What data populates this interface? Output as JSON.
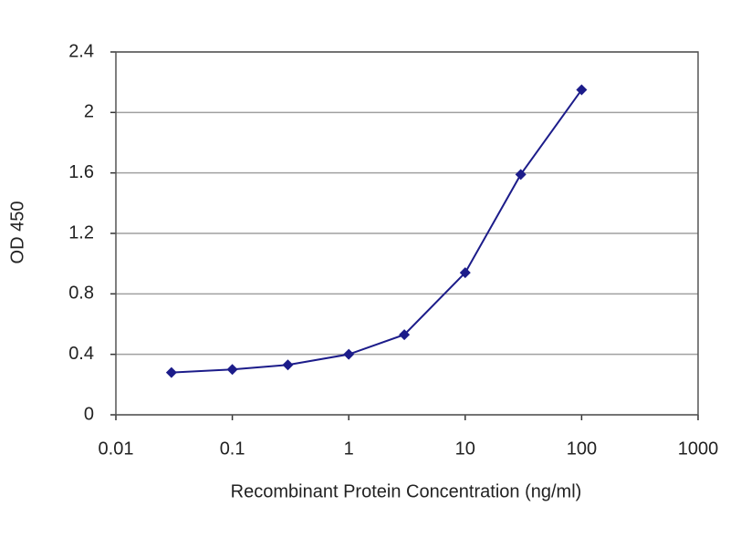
{
  "chart_data": {
    "type": "line",
    "x_label": "Recombinant Protein Concentration (ng/ml)",
    "y_label": "OD 450",
    "x": [
      0.03,
      0.1,
      0.3,
      1,
      3,
      10,
      30,
      100
    ],
    "values": [
      0.28,
      0.3,
      0.33,
      0.4,
      0.53,
      0.94,
      1.59,
      2.15
    ],
    "color": "#1c1c8a",
    "xscale": "log",
    "xlim": [
      0.01,
      1000
    ],
    "xticks": [
      0.01,
      0.1,
      1,
      10,
      100,
      1000
    ],
    "ylim": [
      0,
      2.4
    ],
    "yticks": [
      0,
      0.4,
      0.8,
      1.2,
      1.6,
      2,
      2.4
    ],
    "grid": true
  }
}
